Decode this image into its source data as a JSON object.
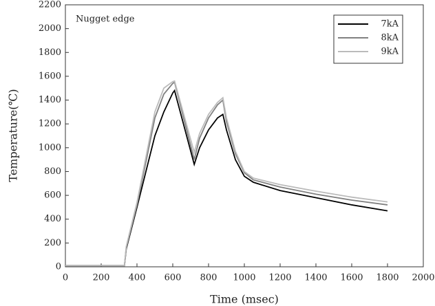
{
  "chart_data": {
    "type": "line",
    "annotation": "Nugget edge",
    "xlabel": "Time (msec)",
    "ylabel": "Temperature(℃)",
    "xlim": [
      0,
      2000
    ],
    "ylim": [
      0,
      2200
    ],
    "xticks": [
      0,
      200,
      400,
      600,
      800,
      1000,
      1200,
      1400,
      1600,
      1800,
      2000
    ],
    "yticks": [
      0,
      200,
      400,
      600,
      800,
      1000,
      1200,
      1400,
      1600,
      1800,
      2000,
      2200
    ],
    "grid": false,
    "legend": "upper right",
    "x": [
      0,
      330,
      340,
      400,
      450,
      500,
      550,
      600,
      610,
      720,
      750,
      800,
      850,
      880,
      900,
      950,
      1000,
      1050,
      1200,
      1400,
      1600,
      1800
    ],
    "series": [
      {
        "name": "7kA",
        "color": "#000000",
        "values": [
          10,
          10,
          150,
          500,
          800,
          1100,
          1300,
          1460,
          1480,
          860,
          1000,
          1150,
          1250,
          1280,
          1150,
          900,
          760,
          710,
          640,
          580,
          520,
          470
        ]
      },
      {
        "name": "8kA",
        "color": "#808080",
        "values": [
          10,
          10,
          160,
          520,
          880,
          1250,
          1450,
          1540,
          1550,
          900,
          1080,
          1250,
          1360,
          1400,
          1220,
          950,
          790,
          730,
          670,
          610,
          560,
          520
        ]
      },
      {
        "name": "9kA",
        "color": "#bbbbbb",
        "values": [
          10,
          10,
          170,
          540,
          920,
          1300,
          1500,
          1555,
          1560,
          960,
          1120,
          1280,
          1380,
          1420,
          1250,
          970,
          800,
          745,
          690,
          635,
          585,
          545
        ]
      }
    ]
  }
}
